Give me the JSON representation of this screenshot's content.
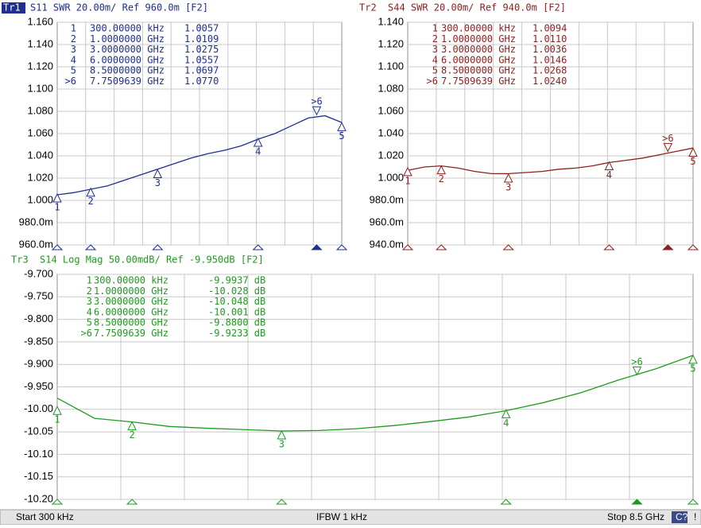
{
  "chart_data": [
    {
      "type": "line",
      "trace": "Tr1",
      "title": "S11  SWR 20.00m/ Ref 960.0m [F2]",
      "color": "#1f2f8f",
      "xlim": [
        0.0003,
        8.5
      ],
      "ylim": [
        0.96,
        1.16
      ],
      "yticks": [
        {
          "value": 1.16,
          "label": "1.160"
        },
        {
          "value": 1.14,
          "label": "1.140"
        },
        {
          "value": 1.12,
          "label": "1.120"
        },
        {
          "value": 1.1,
          "label": "1.100"
        },
        {
          "value": 1.08,
          "label": "1.080"
        },
        {
          "value": 1.06,
          "label": "1.060"
        },
        {
          "value": 1.04,
          "label": "1.040"
        },
        {
          "value": 1.02,
          "label": "1.020"
        },
        {
          "value": 1.0,
          "label": "1.000"
        },
        {
          "value": 0.98,
          "label": "980.0m"
        },
        {
          "value": 0.96,
          "label": "960.0m"
        }
      ],
      "x": [
        0.0003,
        0.5,
        1,
        1.5,
        2,
        2.5,
        3,
        3.5,
        4,
        4.5,
        5,
        5.5,
        6,
        6.5,
        7,
        7.5,
        8,
        8.5
      ],
      "series": [
        {
          "name": "S11",
          "color": "#1f2f8f",
          "values": [
            1.005,
            1.007,
            1.01,
            1.013,
            1.018,
            1.023,
            1.028,
            1.033,
            1.038,
            1.042,
            1.045,
            1.049,
            1.055,
            1.06,
            1.067,
            1.074,
            1.076,
            1.07
          ]
        }
      ],
      "markers": {
        "names": [
          "1",
          "2",
          "3",
          "4",
          "5",
          ">6"
        ],
        "x": [
          0.0003,
          1,
          3,
          6,
          8.5,
          7.7509639
        ],
        "x_labels": [
          "300.00000 kHz",
          "1.0000000 GHz",
          "3.0000000 GHz",
          "6.0000000 GHz",
          "8.5000000 GHz",
          "7.7509639 GHz"
        ],
        "values": [
          1.0057,
          1.0109,
          1.0275,
          1.0557,
          1.0697,
          1.077
        ],
        "value_labels": [
          "1.0057",
          "1.0109",
          "1.0275",
          "1.0557",
          "1.0697",
          "1.0770"
        ]
      }
    },
    {
      "type": "line",
      "trace": "Tr2",
      "title": "S44  SWR 20.00m/ Ref 940.0m [F2]",
      "color": "#8f1f1f",
      "xlim": [
        0.0003,
        8.5
      ],
      "ylim": [
        0.94,
        1.14
      ],
      "yticks": [
        {
          "value": 1.14,
          "label": "1.140"
        },
        {
          "value": 1.12,
          "label": "1.120"
        },
        {
          "value": 1.1,
          "label": "1.100"
        },
        {
          "value": 1.08,
          "label": "1.080"
        },
        {
          "value": 1.06,
          "label": "1.060"
        },
        {
          "value": 1.04,
          "label": "1.040"
        },
        {
          "value": 1.02,
          "label": "1.020"
        },
        {
          "value": 1.0,
          "label": "1.000"
        },
        {
          "value": 0.98,
          "label": "980.0m"
        },
        {
          "value": 0.96,
          "label": "960.0m"
        },
        {
          "value": 0.94,
          "label": "940.0m"
        }
      ],
      "x": [
        0.0003,
        0.5,
        1,
        1.5,
        2,
        2.5,
        3,
        3.5,
        4,
        4.5,
        5,
        5.5,
        6,
        6.5,
        7,
        7.5,
        8,
        8.5
      ],
      "series": [
        {
          "name": "S44",
          "color": "#8f1f1f",
          "values": [
            1.007,
            1.01,
            1.011,
            1.009,
            1.006,
            1.004,
            1.004,
            1.005,
            1.006,
            1.008,
            1.009,
            1.011,
            1.014,
            1.016,
            1.018,
            1.021,
            1.024,
            1.027
          ]
        }
      ],
      "markers": {
        "names": [
          "1",
          "2",
          "3",
          "4",
          "5",
          ">6"
        ],
        "x": [
          0.0003,
          1,
          3,
          6,
          8.5,
          7.7509639
        ],
        "x_labels": [
          "300.00000 kHz",
          "1.0000000 GHz",
          "3.0000000 GHz",
          "6.0000000 GHz",
          "8.5000000 GHz",
          "7.7509639 GHz"
        ],
        "values": [
          1.0094,
          1.011,
          1.0036,
          1.0146,
          1.0268,
          1.024
        ],
        "value_labels": [
          "1.0094",
          "1.0110",
          "1.0036",
          "1.0146",
          "1.0268",
          "1.0240"
        ]
      }
    },
    {
      "type": "line",
      "trace": "Tr3",
      "title": "S14  Log Mag 50.00mdB/ Ref -9.950dB [F2]",
      "color": "#1f9a1f",
      "xlim": [
        0.0003,
        8.5
      ],
      "ylim": [
        -10.2,
        -9.7
      ],
      "yticks": [
        {
          "value": -9.7,
          "label": "-9.700"
        },
        {
          "value": -9.75,
          "label": "-9.750"
        },
        {
          "value": -9.8,
          "label": "-9.800"
        },
        {
          "value": -9.85,
          "label": "-9.850"
        },
        {
          "value": -9.9,
          "label": "-9.900"
        },
        {
          "value": -9.95,
          "label": "-9.950"
        },
        {
          "value": -10.0,
          "label": "-10.00"
        },
        {
          "value": -10.05,
          "label": "-10.05"
        },
        {
          "value": -10.1,
          "label": "-10.10"
        },
        {
          "value": -10.15,
          "label": "-10.15"
        },
        {
          "value": -10.2,
          "label": "-10.20"
        }
      ],
      "x": [
        0.0003,
        0.5,
        1,
        1.5,
        2,
        2.5,
        3,
        3.5,
        4,
        4.5,
        5,
        5.5,
        6,
        6.5,
        7,
        7.5,
        8,
        8.5
      ],
      "series": [
        {
          "name": "S14",
          "color": "#1f9a1f",
          "values": [
            -9.975,
            -10.02,
            -10.028,
            -10.038,
            -10.042,
            -10.045,
            -10.048,
            -10.047,
            -10.043,
            -10.036,
            -10.027,
            -10.017,
            -10.003,
            -9.985,
            -9.963,
            -9.935,
            -9.91,
            -9.88
          ]
        }
      ],
      "markers": {
        "names": [
          "1",
          "2",
          "3",
          "4",
          "5",
          ">6"
        ],
        "x": [
          0.0003,
          1,
          3,
          6,
          8.5,
          7.7509639
        ],
        "x_labels": [
          "300.00000 kHz",
          "1.0000000 GHz",
          "3.0000000 GHz",
          "6.0000000 GHz",
          "8.5000000 GHz",
          "7.7509639 GHz"
        ],
        "values": [
          -9.9937,
          -10.028,
          -10.048,
          -10.001,
          -9.88,
          -9.9233
        ],
        "value_labels": [
          "-9.9937 dB",
          "-10.028 dB",
          "-10.048 dB",
          "-10.001 dB",
          "-9.8800 dB",
          "-9.9233 dB"
        ]
      }
    }
  ],
  "status_bar": {
    "start": "Start 300 kHz",
    "ifbw": "IFBW 1 kHz",
    "stop": "Stop 8.5 GHz",
    "cal": "C?",
    "warn": "!"
  }
}
